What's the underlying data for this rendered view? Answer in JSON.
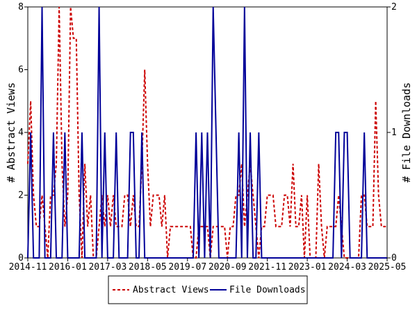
{
  "chart_data": {
    "type": "line",
    "x_tick_labels": [
      "2014-11",
      "2016-01",
      "2017-03",
      "2018-05",
      "2019-07",
      "2020-09",
      "2021-11",
      "2023-01",
      "2024-03",
      "2025-05"
    ],
    "y_left": {
      "label": "# Abstract Views",
      "ylim": [
        0,
        8
      ],
      "ticks": [
        "0",
        "2",
        "4",
        "6",
        "8"
      ]
    },
    "y_right": {
      "label": "# File Downloads",
      "ylim": [
        0,
        2
      ],
      "ticks": [
        "0",
        "1",
        "2"
      ]
    },
    "x_count": 127,
    "series": [
      {
        "name": "Abstract Views",
        "axis": "left",
        "color": "#cc0000",
        "style": "dashed",
        "values": [
          3,
          5,
          2,
          1,
          1,
          2,
          1,
          0,
          2,
          2,
          3,
          8,
          3,
          1,
          2,
          8,
          7,
          7,
          2,
          0,
          3,
          1,
          2,
          0,
          0,
          1,
          2,
          1,
          2,
          1,
          2,
          1,
          1,
          1,
          2,
          2,
          1,
          2,
          1,
          1,
          3,
          6,
          3,
          1,
          2,
          2,
          2,
          1,
          2,
          0,
          1,
          1,
          1,
          1,
          1,
          1,
          1,
          1,
          0,
          0,
          1,
          1,
          1,
          1,
          0,
          1,
          1,
          1,
          1,
          1,
          0,
          1,
          1,
          2,
          2,
          3,
          1,
          2,
          3,
          2,
          1,
          0,
          1,
          1,
          2,
          2,
          2,
          1,
          1,
          1,
          2,
          2,
          1,
          3,
          1,
          1,
          2,
          0,
          2,
          0,
          0,
          0,
          3,
          1,
          0,
          1,
          1,
          1,
          1,
          2,
          1,
          0,
          0,
          0,
          0,
          0,
          0,
          2,
          2,
          1,
          1,
          1,
          5,
          2,
          1,
          1,
          1
        ]
      },
      {
        "name": "File Downloads",
        "axis": "right",
        "color": "#000099",
        "style": "solid",
        "values": [
          0,
          1,
          0,
          0,
          0,
          2,
          0,
          0,
          0,
          1,
          0,
          0,
          0,
          1,
          0,
          0,
          0,
          0,
          0,
          1,
          0,
          0,
          0,
          0,
          0,
          2,
          0,
          1,
          0,
          0,
          0,
          1,
          0,
          0,
          0,
          0,
          1,
          1,
          0,
          0,
          1,
          0,
          0,
          0,
          0,
          0,
          0,
          0,
          0,
          0,
          0,
          0,
          0,
          0,
          0,
          0,
          0,
          0,
          0,
          1,
          0,
          1,
          0,
          1,
          0,
          2,
          1,
          0,
          0,
          0,
          0,
          0,
          0,
          0,
          1,
          0,
          2,
          0,
          1,
          0,
          0,
          1,
          0,
          0,
          0,
          0,
          0,
          0,
          0,
          0,
          0,
          0,
          0,
          0,
          0,
          0,
          0,
          0,
          0,
          0,
          0,
          0,
          0,
          0,
          0,
          0,
          0,
          0,
          1,
          1,
          0,
          1,
          1,
          0,
          0,
          0,
          0,
          0,
          1,
          0,
          0,
          0,
          0,
          0,
          0,
          0,
          0
        ]
      }
    ]
  }
}
